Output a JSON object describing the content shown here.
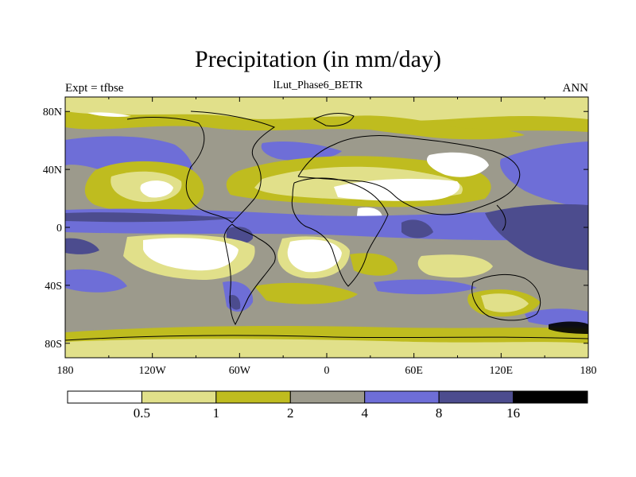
{
  "title": "Precipitation (in mm/day)",
  "left_label": "Expt = tfbse",
  "center_label": "lLut_Phase6_BETR",
  "right_label": "ANN",
  "map": {
    "lon_range": [
      -180,
      180
    ],
    "lat_range": [
      -90,
      90
    ],
    "x_ticks": [
      {
        "lon": -180,
        "label": "180"
      },
      {
        "lon": -120,
        "label": "120W"
      },
      {
        "lon": -60,
        "label": "60W"
      },
      {
        "lon": 0,
        "label": "0"
      },
      {
        "lon": 60,
        "label": "60E"
      },
      {
        "lon": 120,
        "label": "120E"
      },
      {
        "lon": 180,
        "label": "180"
      }
    ],
    "y_ticks": [
      {
        "lat": 80,
        "label": "80N"
      },
      {
        "lat": 40,
        "label": "40N"
      },
      {
        "lat": 0,
        "label": "0"
      },
      {
        "lat": -40,
        "label": "40S"
      },
      {
        "lat": -80,
        "label": "80S"
      }
    ]
  },
  "colorbar": {
    "levels": [
      "0.5",
      "1",
      "2",
      "4",
      "8",
      "16"
    ],
    "colors": [
      "#ffffff",
      "#e1e08a",
      "#bfbc1f",
      "#9c9a8c",
      "#6e6ed7",
      "#4c4c8e",
      "#000000"
    ]
  },
  "chart_data": {
    "type": "heatmap",
    "title": "Precipitation (in mm/day)",
    "subtitle": "lLut_Phase6_BETR",
    "left_label": "Expt = tfbse",
    "right_label": "ANN",
    "xlim": [
      -180,
      180
    ],
    "ylim": [
      -90,
      90
    ],
    "contour_levels": [
      0.5,
      1,
      2,
      4,
      8,
      16
    ],
    "units": "mm/day",
    "regions": [
      {
        "lon": [
          -180,
          180
        ],
        "lat": [
          70,
          90
        ],
        "bin": 1
      },
      {
        "lon": [
          -180,
          180
        ],
        "lat": [
          40,
          70
        ],
        "bin": 3
      },
      {
        "lon": [
          -180,
          -130
        ],
        "lat": [
          20,
          60
        ],
        "bin": 4
      },
      {
        "lon": [
          -180,
          180
        ],
        "lat": [
          -10,
          12
        ],
        "bin": 4
      },
      {
        "lon": [
          120,
          180
        ],
        "lat": [
          -15,
          10
        ],
        "bin": 5
      },
      {
        "lon": [
          -125,
          -95
        ],
        "lat": [
          25,
          40
        ],
        "bin": 0
      },
      {
        "lon": [
          -40,
          60
        ],
        "lat": [
          18,
          32
        ],
        "bin": 0
      },
      {
        "lon": [
          50,
          90
        ],
        "lat": [
          28,
          45
        ],
        "bin": 0
      },
      {
        "lon": [
          -150,
          -80
        ],
        "lat": [
          -30,
          -8
        ],
        "bin": 0
      },
      {
        "lon": [
          -30,
          10
        ],
        "lat": [
          -30,
          -8
        ],
        "bin": 0
      },
      {
        "lon": [
          110,
          150
        ],
        "lat": [
          -35,
          -20
        ],
        "bin": 1
      },
      {
        "lon": [
          -180,
          180
        ],
        "lat": [
          -70,
          -40
        ],
        "bin": 3
      },
      {
        "lon": [
          -180,
          180
        ],
        "lat": [
          -90,
          -70
        ],
        "bin": 2
      }
    ]
  }
}
